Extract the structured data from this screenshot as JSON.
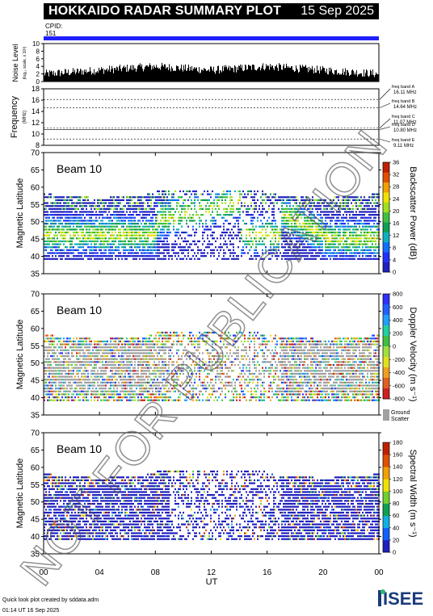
{
  "header": {
    "title": "HOKKAIDO RADAR SUMMARY PLOT",
    "date": "15 Sep 2025",
    "cpid_label": "CPID:",
    "cpid_value": "151"
  },
  "colors": {
    "cpid_bar": "#2020ff",
    "ground_scatter": "#a0a0a0"
  },
  "noise_panel": {
    "ylabel": "Noise Level",
    "ylabel_sub": "(log₁₀ scale, x 10³)",
    "yticks": [
      "0",
      "2",
      "4",
      "6",
      "8",
      "10"
    ],
    "ymin": 0,
    "ymax": 10
  },
  "frequency_panel": {
    "ylabel": "Frequency",
    "ylabel_unit": "(MHz)",
    "yticks": [
      "8",
      "10",
      "12",
      "14",
      "16",
      "18"
    ],
    "ymin": 8,
    "ymax": 18,
    "bands": [
      {
        "label": "freq band A",
        "value": "16.11 MHz",
        "mhz": 16.11
      },
      {
        "label": "freq band B",
        "value": "14.64 MHz",
        "mhz": 14.64
      },
      {
        "label": "freq band C",
        "value": "11.07 MHz",
        "mhz": 11.07
      },
      {
        "label": "freq band D",
        "value": "10.80 MHz",
        "mhz": 10.8
      },
      {
        "label": "freq band E",
        "value": "9.11 MHz",
        "mhz": 9.11
      }
    ]
  },
  "beam_panels": [
    {
      "beam": "Beam 10",
      "ylabel": "Magnetic Latitude",
      "yticks": [
        "35",
        "40",
        "45",
        "50",
        "55",
        "60",
        "65",
        "70"
      ],
      "ymin": 35,
      "ymax": 70,
      "cbar_label": "Backscatter Power (dB)",
      "cbar_ticks": [
        "0",
        "4",
        "8",
        "12",
        "16",
        "20",
        "24",
        "28",
        "32",
        "36"
      ]
    },
    {
      "beam": "Beam 10",
      "ylabel": "Magnetic Latitude",
      "yticks": [
        "35",
        "40",
        "45",
        "50",
        "55",
        "60",
        "65",
        "70"
      ],
      "ymin": 35,
      "ymax": 70,
      "cbar_label": "Doppler Velocity (m s⁻¹)",
      "cbar_ticks": [
        "800",
        "600",
        "400",
        "200",
        "0",
        "-200",
        "-400",
        "-600",
        "-800"
      ],
      "ground_label_1": "Ground",
      "ground_label_2": "Scatter"
    },
    {
      "beam": "Beam 10",
      "ylabel": "Magnetic Latitude",
      "yticks": [
        "35",
        "40",
        "45",
        "50",
        "55",
        "60",
        "65",
        "70"
      ],
      "ymin": 35,
      "ymax": 70,
      "cbar_label": "Spectral Width (m s⁻¹)",
      "cbar_ticks": [
        "0",
        "20",
        "40",
        "60",
        "80",
        "100",
        "120",
        "140",
        "160",
        "180"
      ]
    }
  ],
  "x_axis": {
    "ticks": [
      "00",
      "04",
      "08",
      "12",
      "16",
      "20",
      "00"
    ],
    "tick_hours": [
      0,
      4,
      8,
      12,
      16,
      20,
      24
    ],
    "label": "UT"
  },
  "watermark": "NOT FOR PUBLICATION",
  "footer": {
    "line1": "Quick look plot created by sddata.adm",
    "line2": "01:14 UT 16 Sep 2025"
  },
  "logo": "ISEE",
  "chart_data": [
    {
      "type": "area",
      "title": "HOKKAIDO RADAR SUMMARY PLOT",
      "ylabel": "Noise Level",
      "ylim": [
        0,
        10
      ],
      "x": [
        0,
        2,
        4,
        6,
        8,
        10,
        12,
        14,
        16,
        18,
        20,
        22,
        24
      ],
      "values": [
        2,
        2.5,
        3,
        3.5,
        4,
        3.5,
        3,
        3.5,
        4,
        3.5,
        3,
        2.5,
        2
      ]
    },
    {
      "type": "line",
      "ylabel": "Frequency",
      "ylim": [
        8,
        18
      ],
      "series": [
        {
          "name": "freq band A",
          "values": [
            16.11
          ]
        },
        {
          "name": "freq band B",
          "values": [
            14.64
          ]
        },
        {
          "name": "freq band C",
          "values": [
            11.07
          ]
        },
        {
          "name": "freq band D",
          "values": [
            10.8
          ]
        },
        {
          "name": "freq band E",
          "values": [
            9.11
          ]
        }
      ]
    },
    {
      "type": "heatmap",
      "ylabel": "Magnetic Latitude",
      "ylim": [
        35,
        70
      ],
      "xlim": [
        0,
        24
      ],
      "series": [
        {
          "name": "Backscatter Power (dB)",
          "range": [
            0,
            36
          ]
        }
      ]
    },
    {
      "type": "heatmap",
      "ylabel": "Magnetic Latitude",
      "ylim": [
        35,
        70
      ],
      "xlim": [
        0,
        24
      ],
      "series": [
        {
          "name": "Doppler Velocity (m s⁻¹)",
          "range": [
            -800,
            800
          ]
        }
      ]
    },
    {
      "type": "heatmap",
      "ylabel": "Magnetic Latitude",
      "ylim": [
        35,
        70
      ],
      "xlim": [
        0,
        24
      ],
      "series": [
        {
          "name": "Spectral Width (m s⁻¹)",
          "range": [
            0,
            180
          ]
        }
      ]
    }
  ]
}
